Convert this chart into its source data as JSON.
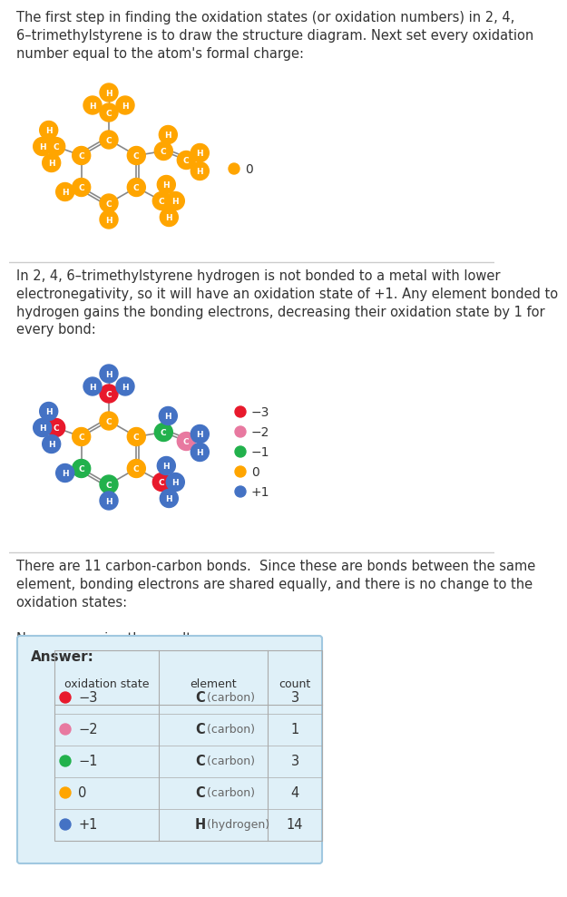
{
  "title_text1": "The first step in finding the oxidation states (or oxidation numbers) in 2, 4,\n6–trimethylstyrene is to draw the structure diagram. Next set every oxidation\nnumber equal to the atom's formal charge:",
  "title_text2": "In 2, 4, 6–trimethylstyrene hydrogen is not bonded to a metal with lower\nelectronegativity, so it will have an oxidation state of +1. Any element bonded to\nhydrogen gains the bonding electrons, decreasing their oxidation state by 1 for\nevery bond:",
  "title_text3": "There are 11 carbon-carbon bonds.  Since these are bonds between the same\nelement, bonding electrons are shared equally, and there is no change to the\noxidation states:",
  "title_text4": "Now summarize the results:",
  "answer_label": "Answer:",
  "col_headers": [
    "oxidation state",
    "element",
    "count"
  ],
  "table_rows": [
    [
      "−3",
      "C (carbon)",
      "3",
      "#e8192c"
    ],
    [
      "−2",
      "C (carbon)",
      "1",
      "#e879a0"
    ],
    [
      "−1",
      "C (carbon)",
      "3",
      "#22b14c"
    ],
    [
      "0",
      "C (carbon)",
      "4",
      "#ffa500"
    ],
    [
      "+1",
      "H (hydrogen)",
      "14",
      "#4472c4"
    ]
  ],
  "color_orange": "#FFA500",
  "color_blue": "#4472C4",
  "color_red": "#e8192c",
  "color_pink": "#e879a0",
  "color_green": "#22b14c",
  "bg_color": "#FFFFFF",
  "box_bg": "#dff0f8",
  "box_border": "#a0c8e0",
  "separator_color": "#cccccc",
  "text_color": "#333333"
}
